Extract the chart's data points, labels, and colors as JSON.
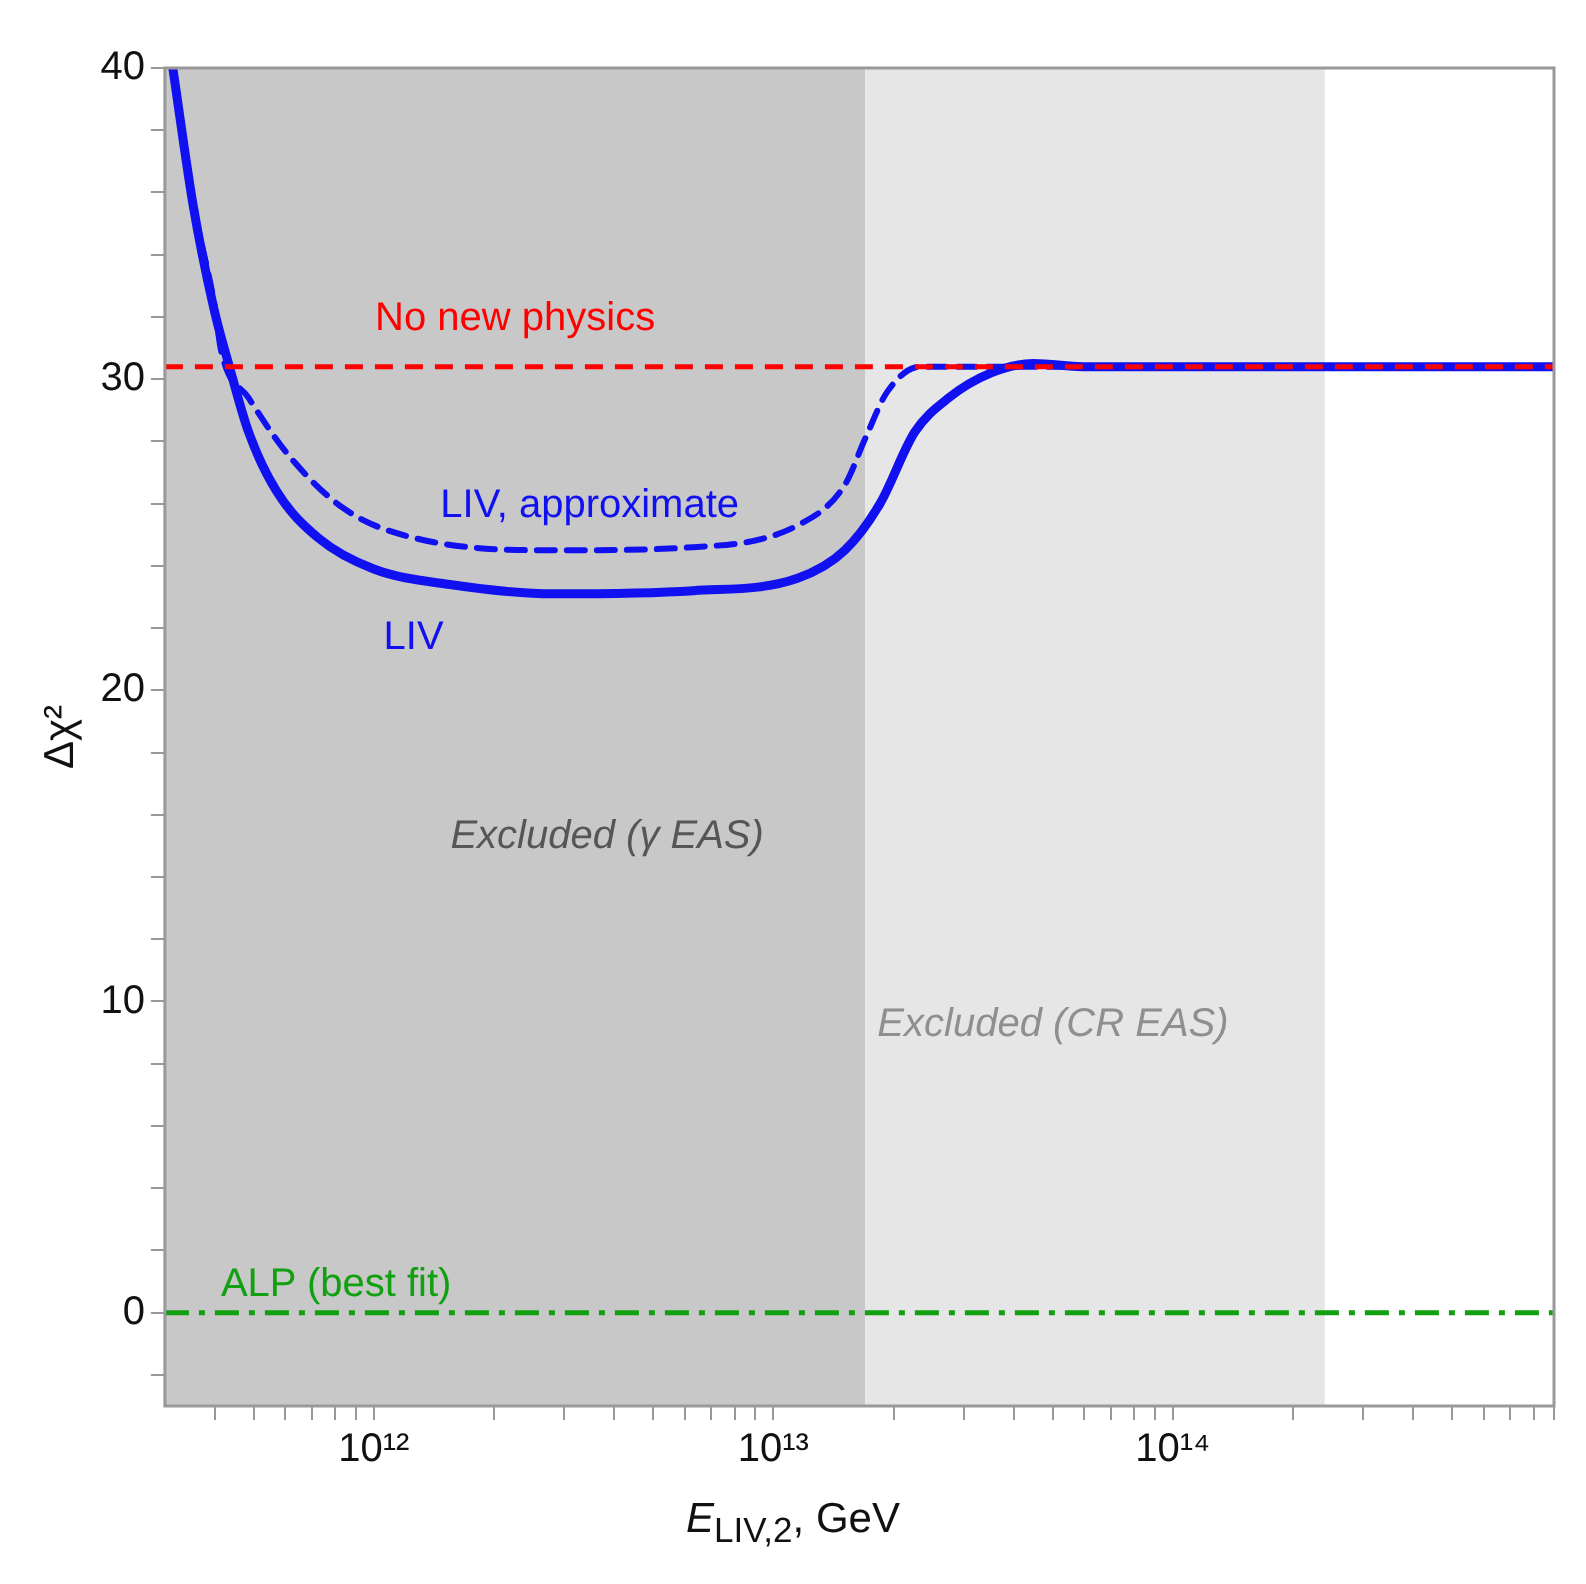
{
  "chart_data": {
    "type": "line",
    "xlabel": "E$_{LIV,2}$, GeV",
    "ylabel": "Δχ²",
    "log": "x",
    "xlim": [
      300000000000.0,
      900000000000000.0
    ],
    "ylim": [
      -3,
      40
    ],
    "xticks": [
      {
        "value": 400000000000.0,
        "label": null
      },
      {
        "value": 500000000000.0,
        "label": null
      },
      {
        "value": 600000000000.0,
        "label": null
      },
      {
        "value": 700000000000.0,
        "label": null
      },
      {
        "value": 800000000000.0,
        "label": null
      },
      {
        "value": 900000000000.0,
        "label": null
      },
      {
        "value": 1000000000000.0,
        "label": "10¹²"
      },
      {
        "value": 2000000000000.0,
        "label": null
      },
      {
        "value": 3000000000000.0,
        "label": null
      },
      {
        "value": 4000000000000.0,
        "label": null
      },
      {
        "value": 5000000000000.0,
        "label": null
      },
      {
        "value": 6000000000000.0,
        "label": null
      },
      {
        "value": 7000000000000.0,
        "label": null
      },
      {
        "value": 8000000000000.0,
        "label": null
      },
      {
        "value": 9000000000000.0,
        "label": null
      },
      {
        "value": 10000000000000.0,
        "label": "10¹³"
      },
      {
        "value": 20000000000000.0,
        "label": null
      },
      {
        "value": 30000000000000.0,
        "label": null
      },
      {
        "value": 40000000000000.0,
        "label": null
      },
      {
        "value": 50000000000000.0,
        "label": null
      },
      {
        "value": 60000000000000.0,
        "label": null
      },
      {
        "value": 70000000000000.0,
        "label": null
      },
      {
        "value": 80000000000000.0,
        "label": null
      },
      {
        "value": 90000000000000.0,
        "label": null
      },
      {
        "value": 100000000000000.0,
        "label": "10¹⁴"
      },
      {
        "value": 200000000000000.0,
        "label": null
      },
      {
        "value": 300000000000000.0,
        "label": null
      },
      {
        "value": 400000000000000.0,
        "label": null
      },
      {
        "value": 500000000000000.0,
        "label": null
      },
      {
        "value": 600000000000000.0,
        "label": null
      },
      {
        "value": 700000000000000.0,
        "label": null
      },
      {
        "value": 800000000000000.0,
        "label": null
      },
      {
        "value": 900000000000000.0,
        "label": null
      }
    ],
    "yticks": [
      {
        "value": -2,
        "label": null
      },
      0,
      {
        "value": 2,
        "label": null
      },
      {
        "value": 4,
        "label": null
      },
      {
        "value": 6,
        "label": null
      },
      {
        "value": 8,
        "label": null
      },
      10,
      {
        "value": 12,
        "label": null
      },
      {
        "value": 14,
        "label": null
      },
      {
        "value": 16,
        "label": null
      },
      {
        "value": 18,
        "label": null
      },
      20,
      {
        "value": 22,
        "label": null
      },
      {
        "value": 24,
        "label": null
      },
      {
        "value": 26,
        "label": null
      },
      {
        "value": 28,
        "label": null
      },
      30,
      {
        "value": 32,
        "label": null
      },
      {
        "value": 34,
        "label": null
      },
      {
        "value": 36,
        "label": null
      },
      {
        "value": 38,
        "label": null
      },
      40
    ],
    "grid": false,
    "legend": false,
    "marker": "none",
    "series": [
      {
        "name": "LIV",
        "color": "#1010f0",
        "line_style": "solid",
        "x": [
          314000000000.0,
          354000000000.0,
          399000000000.0,
          433000000000.0,
          486000000000.0,
          571000000000.0,
          726000000000.0,
          1000000000000.0,
          1550000000000.0,
          2820000000000.0,
          6310000000000.0,
          11500000000000.0,
          15100000000000.0,
          18500000000000.0,
          22600000000000.0,
          27500000000000.0,
          35100000000000.0,
          44700000000000.0,
          61700000000000.0,
          900000000000000.0
        ],
        "values": [
          40,
          35.5,
          32.2,
          30.5,
          28.3,
          26.4,
          24.9,
          23.9,
          23.4,
          23.1,
          23.2,
          23.6,
          24.5,
          26.0,
          28.3,
          29.4,
          30.2,
          30.5,
          30.4,
          30.4
        ]
      },
      {
        "name": "LIV, approximate",
        "color": "#1010f0",
        "line_style": "dashed",
        "x": [
          314000000000.0,
          354000000000.0,
          399000000000.0,
          415000000000.0,
          486000000000.0,
          617000000000.0,
          851000000000.0,
          1260000000000.0,
          2820000000000.0,
          6310000000000.0,
          11500000000000.0,
          15100000000000.0,
          17000000000000.0,
          19300000000000.0,
          23400000000000.0,
          900000000000000.0
        ],
        "values": [
          40,
          35.6,
          32.4,
          30.9,
          29.4,
          27.5,
          25.8,
          24.9,
          24.5,
          24.6,
          25.3,
          26.6,
          28.1,
          29.6,
          30.4,
          30.4
        ]
      }
    ],
    "ref_lines": [
      {
        "axis": "y",
        "value": 30.4,
        "color": "#ff0000",
        "line_style": "dashed",
        "label": "No new physics"
      },
      {
        "axis": "y",
        "value": 0,
        "color": "#10a010",
        "line_style": "dashdot",
        "label": "ALP (best fit)"
      }
    ],
    "bands": [
      {
        "axis": "x",
        "from": 300000000000.0,
        "to": 17000000000000.0,
        "color": "#c8c8c8",
        "label": "Excluded (γ EAS)"
      },
      {
        "axis": "x",
        "from": 17000000000000.0,
        "to": 240000000000000.0,
        "color": "#e6e6e6",
        "label": "Excluded (CR EAS)"
      }
    ]
  }
}
